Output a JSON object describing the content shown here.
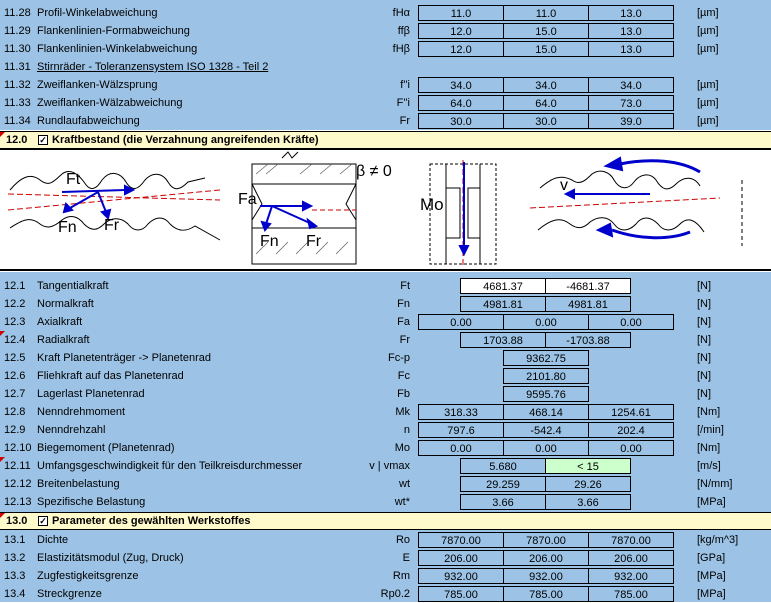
{
  "colors": {
    "band": "#9cc3e6",
    "header": "#fffacc",
    "green_cell": "#ccffcc",
    "arrow_blue": "#0000cc",
    "red_dash": "#cc0000"
  },
  "top_rows": [
    {
      "num": "11.28",
      "label": "Profil-Winkelabweichung",
      "sym": "fHα",
      "v1": "11.0",
      "v2": "11.0",
      "v3": "13.0",
      "unit": "[µm]"
    },
    {
      "num": "11.29",
      "label": "Flankenlinien-Formabweichung",
      "sym": "ffβ",
      "v1": "12.0",
      "v2": "15.0",
      "v3": "13.0",
      "unit": "[µm]"
    },
    {
      "num": "11.30",
      "label": "Flankenlinien-Winkelabweichung",
      "sym": "fHβ",
      "v1": "12.0",
      "v2": "15.0",
      "v3": "13.0",
      "unit": "[µm]"
    },
    {
      "num": "11.31",
      "label": "Stirnräder - Toleranzensystem ISO 1328 - Teil 2"
    },
    {
      "num": "11.32",
      "label": "Zweiflanken-Wälzsprung",
      "sym": "f''i",
      "v1": "34.0",
      "v2": "34.0",
      "v3": "34.0",
      "unit": "[µm]"
    },
    {
      "num": "11.33",
      "label": "Zweiflanken-Wälzabweichung",
      "sym": "F''i",
      "v1": "64.0",
      "v2": "64.0",
      "v3": "73.0",
      "unit": "[µm]"
    },
    {
      "num": "11.34",
      "label": "Rundlaufabweichung",
      "sym": "Fr",
      "v1": "30.0",
      "v2": "30.0",
      "v3": "39.0",
      "unit": "[µm]"
    }
  ],
  "section12": {
    "num": "12.0",
    "title": "Kraftbestand (die Verzahnung angreifenden Kräfte)",
    "check": "✓"
  },
  "figure_labels": {
    "ft": "Ft",
    "fn": "Fn",
    "fr": "Fr",
    "fa": "Fa",
    "fn2": "Fn",
    "fr2": "Fr",
    "beta": "β ≠ 0",
    "mo": "Mo",
    "v": "v"
  },
  "forces": [
    {
      "num": "12.1",
      "label": "Tangentialkraft",
      "sym": "Ft",
      "a": "4681.37",
      "b": "-4681.37",
      "unit": "[N]"
    },
    {
      "num": "12.2",
      "label": "Normalkraft",
      "sym": "Fn",
      "a": "4981.81",
      "b": "4981.81",
      "unit": "[N]"
    },
    {
      "num": "12.3",
      "label": "Axialkraft",
      "sym": "Fa",
      "v1": "0.00",
      "v2": "0.00",
      "v3": "0.00",
      "unit": "[N]"
    },
    {
      "num": "12.4",
      "label": "Radialkraft",
      "sym": "Fr",
      "a": "1703.88",
      "b": "-1703.88",
      "unit": "[N]"
    },
    {
      "num": "12.5",
      "label": "Kraft Planetenträger -> Planetenrad",
      "sym": "Fc-p",
      "c": "9362.75",
      "unit": "[N]"
    },
    {
      "num": "12.6",
      "label": "Fliehkraft auf das Planetenrad",
      "sym": "Fc",
      "c": "2101.80",
      "unit": "[N]"
    },
    {
      "num": "12.7",
      "label": "Lagerlast Planetenrad",
      "sym": "Fb",
      "c": "9595.76",
      "unit": "[N]"
    },
    {
      "num": "12.8",
      "label": "Nenndrehmoment",
      "sym": "Mk",
      "v1": "318.33",
      "v2": "468.14",
      "v3": "1254.61",
      "unit": "[Nm]"
    },
    {
      "num": "12.9",
      "label": "Nenndrehzahl",
      "sym": "n",
      "v1": "797.6",
      "v2": "-542.4",
      "v3": "202.4",
      "unit": "[/min]"
    },
    {
      "num": "12.10",
      "label": "Biegemoment (Planetenrad)",
      "sym": "Mo",
      "v1": "0.00",
      "v2": "0.00",
      "v3": "0.00",
      "unit": "[Nm]"
    },
    {
      "num": "12.11",
      "label": "Umfangsgeschwindigkeit für den Teilkreisdurchmesser",
      "sym": "v | vmax",
      "a": "5.680",
      "b": "< 15",
      "unit": "[m/s]"
    },
    {
      "num": "12.12",
      "label": "Breitenbelastung",
      "sym": "wt",
      "a": "29.259",
      "b": "29.26",
      "unit": "[N/mm]"
    },
    {
      "num": "12.13",
      "label": "Spezifische Belastung",
      "sym": "wt*",
      "a": "3.66",
      "b": "3.66",
      "unit": "[MPa]"
    }
  ],
  "section13": {
    "num": "13.0",
    "title": "Parameter des gewählten Werkstoffes",
    "check": "✓"
  },
  "material": [
    {
      "num": "13.1",
      "label": "Dichte",
      "sym": "Ro",
      "v1": "7870.00",
      "v2": "7870.00",
      "v3": "7870.00",
      "unit": "[kg/m^3]"
    },
    {
      "num": "13.2",
      "label": "Elastizitätsmodul (Zug, Druck)",
      "sym": "E",
      "v1": "206.00",
      "v2": "206.00",
      "v3": "206.00",
      "unit": "[GPa]"
    },
    {
      "num": "13.3",
      "label": "Zugfestigkeitsgrenze",
      "sym": "Rm",
      "v1": "932.00",
      "v2": "932.00",
      "v3": "932.00",
      "unit": "[MPa]"
    },
    {
      "num": "13.4",
      "label": "Streckgrenze",
      "sym": "Rp0.2",
      "v1": "785.00",
      "v2": "785.00",
      "v3": "785.00",
      "unit": "[MPa]"
    }
  ]
}
